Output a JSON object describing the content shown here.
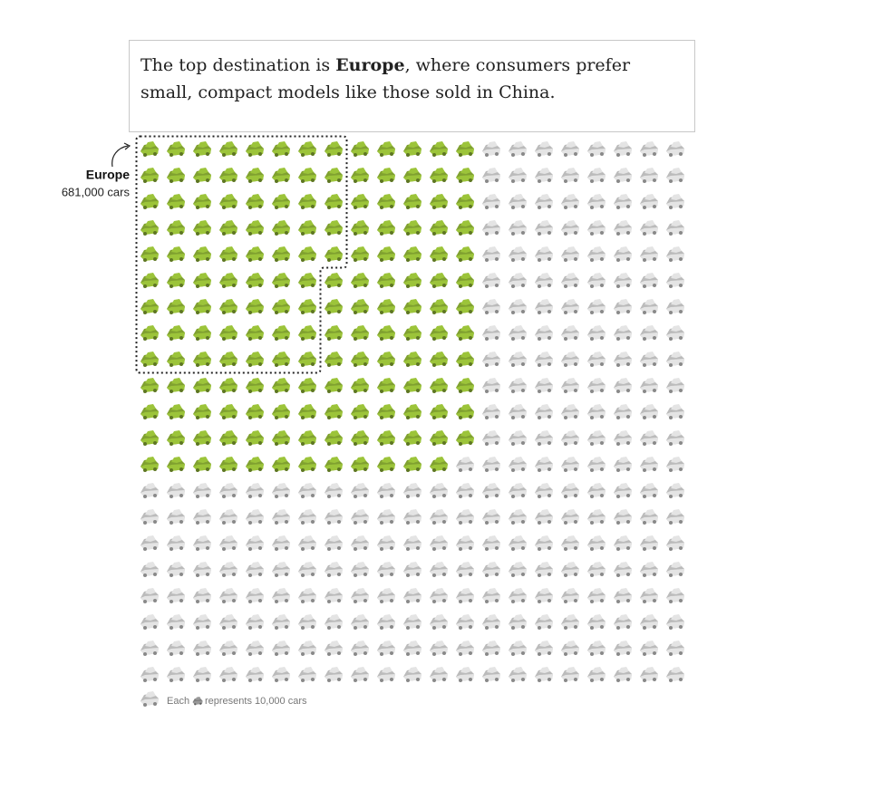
{
  "chart_data": {
    "type": "waffle",
    "intro_before": "The top destination is ",
    "intro_bold": "Europe",
    "intro_after": ", where consumers prefer small, compact models like those sold in China.",
    "rows": 21,
    "columns": 21,
    "total": 441,
    "highlighted": 168,
    "highlight_color": "#9cc43a",
    "base_color": "#e4e4e4",
    "europe": {
      "label": "Europe",
      "value": 681000,
      "value_label": "681,000 cars",
      "column_height": 9
    },
    "unit": 10000,
    "legend_before": "Each",
    "legend_after": "represents 10,000 cars"
  }
}
